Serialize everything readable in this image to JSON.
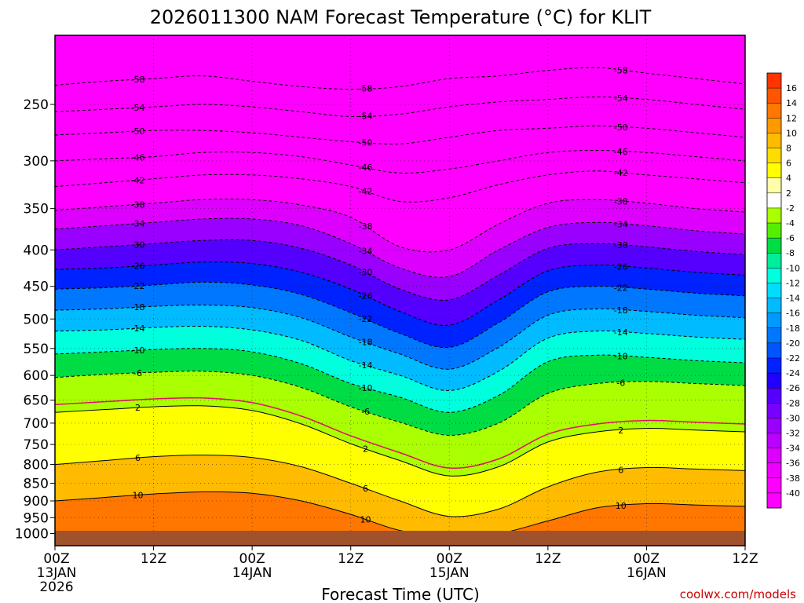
{
  "chart_data": {
    "type": "heatmap",
    "title": "2026011300 NAM Forecast Temperature (°C) for KLIT",
    "xlabel": "Forecast Time (UTC)",
    "ylabel": "",
    "credit": "coolwx.com/models",
    "x_ticks": [
      {
        "hour": 0,
        "lines": [
          "00Z",
          "13JAN",
          "2026"
        ]
      },
      {
        "hour": 12,
        "lines": [
          "12Z"
        ]
      },
      {
        "hour": 24,
        "lines": [
          "00Z",
          "14JAN"
        ]
      },
      {
        "hour": 36,
        "lines": [
          "12Z"
        ]
      },
      {
        "hour": 48,
        "lines": [
          "00Z",
          "15JAN"
        ]
      },
      {
        "hour": 60,
        "lines": [
          "12Z"
        ]
      },
      {
        "hour": 72,
        "lines": [
          "00Z",
          "16JAN"
        ]
      },
      {
        "hour": 84,
        "lines": [
          "12Z"
        ]
      }
    ],
    "xlim_hours": [
      0,
      84
    ],
    "y_ticks": [
      250,
      300,
      350,
      400,
      450,
      500,
      550,
      600,
      650,
      700,
      750,
      800,
      850,
      900,
      950,
      1000
    ],
    "ylim_hPa": [
      200,
      1040
    ],
    "y_scale": "log",
    "grid": true,
    "colorbar_labels": [
      16,
      14,
      12,
      10,
      8,
      6,
      4,
      2,
      -2,
      -4,
      -6,
      -8,
      -10,
      -12,
      -14,
      -16,
      -18,
      -20,
      -22,
      -24,
      -26,
      -28,
      -30,
      -32,
      -34,
      -36,
      -38,
      -40
    ],
    "colorbar_colors": [
      "#ff3300",
      "#ff5500",
      "#ff7700",
      "#ff9900",
      "#ffbb00",
      "#ffdd00",
      "#ffff00",
      "#ffffaa",
      "#ffffff",
      "#aaff00",
      "#55ee00",
      "#00dd44",
      "#00ee99",
      "#00ffdd",
      "#00ddff",
      "#00bbff",
      "#0099ff",
      "#0077ff",
      "#0055ff",
      "#0022ff",
      "#2200ff",
      "#5500ff",
      "#7700ff",
      "#9900ff",
      "#bb00ff",
      "#dd00ff",
      "#ee00ff",
      "#ff00ff",
      "#ff00ff"
    ],
    "ground_color": "#a0522d",
    "freezing_line_color": "#e0106a",
    "isotherm_profiles": [
      {
        "label": "-58",
        "p": [
          235,
          232,
          230,
          228,
          232,
          236,
          238,
          236,
          230,
          228,
          224,
          222,
          226,
          230,
          234
        ]
      },
      {
        "label": "-54",
        "p": [
          256,
          254,
          252,
          250,
          252,
          256,
          260,
          258,
          252,
          248,
          246,
          244,
          246,
          250,
          254
        ]
      },
      {
        "label": "-50",
        "p": [
          276,
          274,
          272,
          272,
          274,
          278,
          282,
          284,
          278,
          272,
          270,
          268,
          270,
          274,
          278
        ]
      },
      {
        "label": "-46",
        "p": [
          300,
          298,
          296,
          292,
          292,
          296,
          304,
          312,
          308,
          300,
          292,
          290,
          292,
          296,
          300
        ]
      },
      {
        "label": "-42",
        "p": [
          326,
          322,
          318,
          314,
          314,
          318,
          326,
          342,
          338,
          324,
          314,
          310,
          314,
          318,
          322
        ]
      },
      {
        "label": "-38",
        "p": [
          352,
          348,
          344,
          340,
          340,
          346,
          360,
          396,
          400,
          368,
          344,
          340,
          344,
          350,
          354
        ]
      },
      {
        "label": "-34",
        "p": [
          374,
          370,
          366,
          362,
          362,
          370,
          392,
          424,
          436,
          400,
          372,
          366,
          370,
          376,
          380
        ]
      },
      {
        "label": "-30",
        "p": [
          400,
          396,
          392,
          388,
          388,
          398,
          420,
          454,
          470,
          434,
          398,
          392,
          396,
          402,
          406
        ]
      },
      {
        "label": "-26",
        "p": [
          426,
          424,
          420,
          416,
          418,
          430,
          454,
          488,
          510,
          470,
          428,
          420,
          424,
          430,
          434
        ]
      },
      {
        "label": "-22",
        "p": [
          454,
          452,
          448,
          444,
          448,
          462,
          490,
          524,
          548,
          506,
          458,
          450,
          454,
          460,
          464
        ]
      },
      {
        "label": "-18",
        "p": [
          486,
          484,
          480,
          478,
          482,
          498,
          530,
          560,
          588,
          548,
          494,
          484,
          488,
          494,
          498
        ]
      },
      {
        "label": "-14",
        "p": [
          520,
          518,
          514,
          512,
          518,
          536,
          572,
          600,
          630,
          592,
          532,
          520,
          524,
          530,
          534
        ]
      },
      {
        "label": "-10",
        "p": [
          560,
          556,
          552,
          550,
          556,
          578,
          616,
          644,
          676,
          640,
          574,
          562,
          566,
          572,
          576
        ]
      },
      {
        "label": "-6",
        "p": [
          604,
          598,
          594,
          592,
          600,
          624,
          664,
          698,
          728,
          700,
          636,
          616,
          612,
          616,
          620
        ]
      },
      {
        "label": "2",
        "p": [
          676,
          670,
          664,
          662,
          672,
          702,
          748,
          790,
          830,
          806,
          744,
          720,
          712,
          716,
          720
        ]
      },
      {
        "label": "6",
        "p": [
          800,
          790,
          780,
          776,
          782,
          806,
          850,
          900,
          946,
          924,
          860,
          820,
          808,
          812,
          816
        ]
      },
      {
        "label": "10",
        "p": [
          900,
          890,
          880,
          874,
          878,
          900,
          940,
          990,
          1010,
          1000,
          960,
          920,
          908,
          912,
          916
        ]
      }
    ]
  }
}
